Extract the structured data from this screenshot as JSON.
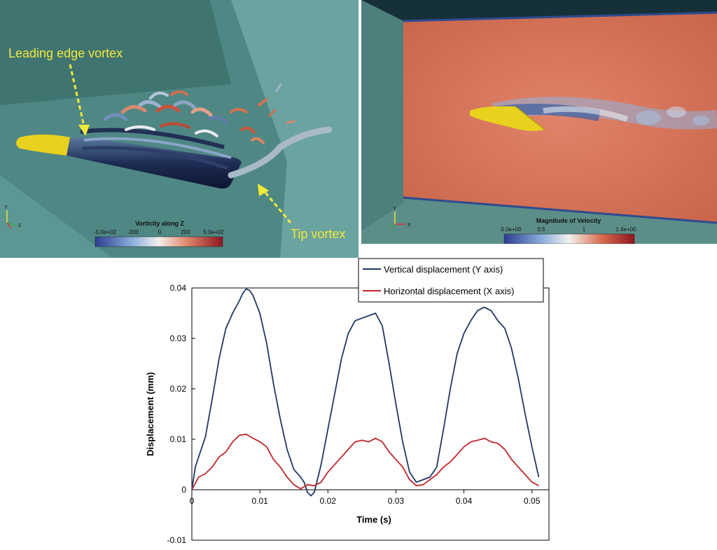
{
  "left_panel": {
    "annotation_leading": "Leading edge vortex",
    "annotation_tip": "Tip vortex",
    "colorbar_title": "Vorticity along Z",
    "colorbar_ticks": [
      "-5.0e+02",
      "-200",
      "0",
      "200",
      "5.0e+02"
    ],
    "axis_labels": [
      "Y",
      "Z"
    ]
  },
  "right_panel": {
    "colorbar_title": "Magnitude of Velocity",
    "colorbar_ticks": [
      "0.0e+00",
      "0.5",
      "1",
      "1.6e+00"
    ],
    "axis_labels": [
      "Y",
      "X"
    ]
  },
  "chart_data": {
    "type": "line",
    "title": "",
    "xlabel": "Time (s)",
    "ylabel": "Displacement (mm)",
    "xlim": [
      0,
      0.0525
    ],
    "ylim": [
      -0.01,
      0.04
    ],
    "xticks": [
      "0",
      "0.01",
      "0.02",
      "0.03",
      "0.04",
      "0.05"
    ],
    "yticks": [
      "-0.01",
      "0",
      "0.01",
      "0.02",
      "0.03",
      "0.04"
    ],
    "grid": false,
    "legend_position": "top-right",
    "series": [
      {
        "name": "Vertical displacement (Y axis)",
        "color": "#1f3864",
        "points": [
          [
            0,
            0
          ],
          [
            0.0005,
            0.0045
          ],
          [
            0.001,
            0.0065
          ],
          [
            0.002,
            0.0105
          ],
          [
            0.003,
            0.018
          ],
          [
            0.004,
            0.026
          ],
          [
            0.005,
            0.032
          ],
          [
            0.006,
            0.035
          ],
          [
            0.007,
            0.0375
          ],
          [
            0.0075,
            0.039
          ],
          [
            0.008,
            0.0398
          ],
          [
            0.0085,
            0.0395
          ],
          [
            0.009,
            0.0385
          ],
          [
            0.01,
            0.035
          ],
          [
            0.011,
            0.029
          ],
          [
            0.012,
            0.021
          ],
          [
            0.013,
            0.014
          ],
          [
            0.014,
            0.008
          ],
          [
            0.015,
            0.004
          ],
          [
            0.016,
            0.0025
          ],
          [
            0.0165,
            0.0015
          ],
          [
            0.017,
            -0.0005
          ],
          [
            0.0175,
            -0.0012
          ],
          [
            0.018,
            -0.0005
          ],
          [
            0.019,
            0.005
          ],
          [
            0.02,
            0.012
          ],
          [
            0.021,
            0.019
          ],
          [
            0.022,
            0.026
          ],
          [
            0.023,
            0.031
          ],
          [
            0.024,
            0.0335
          ],
          [
            0.025,
            0.034
          ],
          [
            0.026,
            0.0345
          ],
          [
            0.027,
            0.035
          ],
          [
            0.028,
            0.0325
          ],
          [
            0.029,
            0.025
          ],
          [
            0.03,
            0.017
          ],
          [
            0.031,
            0.0095
          ],
          [
            0.032,
            0.0035
          ],
          [
            0.033,
            0.0015
          ],
          [
            0.034,
            0.002
          ],
          [
            0.035,
            0.0025
          ],
          [
            0.036,
            0.0045
          ],
          [
            0.037,
            0.012
          ],
          [
            0.038,
            0.02
          ],
          [
            0.039,
            0.027
          ],
          [
            0.04,
            0.031
          ],
          [
            0.041,
            0.0335
          ],
          [
            0.042,
            0.0355
          ],
          [
            0.043,
            0.0362
          ],
          [
            0.044,
            0.0355
          ],
          [
            0.045,
            0.0335
          ],
          [
            0.046,
            0.032
          ],
          [
            0.047,
            0.028
          ],
          [
            0.048,
            0.022
          ],
          [
            0.049,
            0.015
          ],
          [
            0.05,
            0.0085
          ],
          [
            0.0505,
            0.0055
          ],
          [
            0.051,
            0.0025
          ]
        ]
      },
      {
        "name": "Horizontal displacement (X axis)",
        "color": "#c0272d",
        "points": [
          [
            0,
            0
          ],
          [
            0.001,
            0.0025
          ],
          [
            0.002,
            0.0032
          ],
          [
            0.003,
            0.0045
          ],
          [
            0.004,
            0.0065
          ],
          [
            0.005,
            0.0075
          ],
          [
            0.006,
            0.0095
          ],
          [
            0.007,
            0.0108
          ],
          [
            0.008,
            0.011
          ],
          [
            0.009,
            0.0102
          ],
          [
            0.01,
            0.0095
          ],
          [
            0.011,
            0.0085
          ],
          [
            0.012,
            0.006
          ],
          [
            0.013,
            0.0045
          ],
          [
            0.014,
            0.0025
          ],
          [
            0.015,
            0.001
          ],
          [
            0.016,
            0.0002
          ],
          [
            0.017,
            0.001
          ],
          [
            0.018,
            0.0008
          ],
          [
            0.019,
            0.0015
          ],
          [
            0.02,
            0.0035
          ],
          [
            0.021,
            0.005
          ],
          [
            0.022,
            0.0065
          ],
          [
            0.023,
            0.008
          ],
          [
            0.024,
            0.0095
          ],
          [
            0.025,
            0.0098
          ],
          [
            0.026,
            0.0095
          ],
          [
            0.027,
            0.0102
          ],
          [
            0.028,
            0.0095
          ],
          [
            0.029,
            0.0075
          ],
          [
            0.03,
            0.006
          ],
          [
            0.031,
            0.0045
          ],
          [
            0.032,
            0.002
          ],
          [
            0.033,
            0.0008
          ],
          [
            0.034,
            0.001
          ],
          [
            0.035,
            0.002
          ],
          [
            0.036,
            0.003
          ],
          [
            0.037,
            0.0045
          ],
          [
            0.038,
            0.0055
          ],
          [
            0.039,
            0.007
          ],
          [
            0.04,
            0.0085
          ],
          [
            0.041,
            0.0095
          ],
          [
            0.042,
            0.0098
          ],
          [
            0.043,
            0.0102
          ],
          [
            0.044,
            0.0095
          ],
          [
            0.045,
            0.0092
          ],
          [
            0.046,
            0.008
          ],
          [
            0.047,
            0.006
          ],
          [
            0.048,
            0.0045
          ],
          [
            0.049,
            0.003
          ],
          [
            0.05,
            0.0015
          ],
          [
            0.051,
            0.0008
          ]
        ]
      }
    ]
  }
}
